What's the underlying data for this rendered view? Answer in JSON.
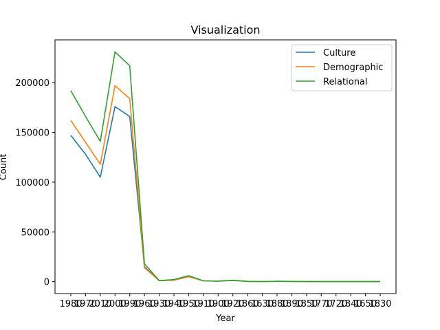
{
  "chart_data": {
    "type": "line",
    "title": "Visualization",
    "xlabel": "Year",
    "ylabel": "Count",
    "categories": [
      "1980",
      "1970",
      "2010",
      "2000",
      "1990",
      "1960",
      "1930",
      "1940",
      "1950",
      "1910",
      "1900",
      "1920",
      "1860",
      "1630",
      "1880",
      "1890",
      "1850",
      "1770",
      "1720",
      "1840",
      "1650",
      "1830"
    ],
    "series": [
      {
        "name": "Culture",
        "color": "#1f77b4",
        "values": [
          147000,
          128000,
          105000,
          176000,
          166000,
          15000,
          1000,
          1500,
          5000,
          800,
          500,
          1200,
          200,
          100,
          300,
          200,
          100,
          50,
          30,
          50,
          20,
          30
        ]
      },
      {
        "name": "Demographic",
        "color": "#ff7f0e",
        "values": [
          162000,
          140000,
          118000,
          197000,
          184000,
          14000,
          1000,
          1500,
          5000,
          800,
          500,
          1200,
          200,
          100,
          300,
          200,
          100,
          50,
          30,
          50,
          20,
          30
        ]
      },
      {
        "name": "Relational",
        "color": "#2ca02c",
        "values": [
          192000,
          166000,
          141000,
          231000,
          217000,
          18000,
          1000,
          2000,
          6000,
          800,
          500,
          1400,
          200,
          100,
          300,
          200,
          100,
          50,
          30,
          50,
          20,
          30
        ]
      }
    ],
    "yticks": [
      "0",
      "50000",
      "100000",
      "150000",
      "200000"
    ],
    "ylim": [
      -12000,
      243000
    ],
    "legend": "top-right",
    "grid": false
  }
}
